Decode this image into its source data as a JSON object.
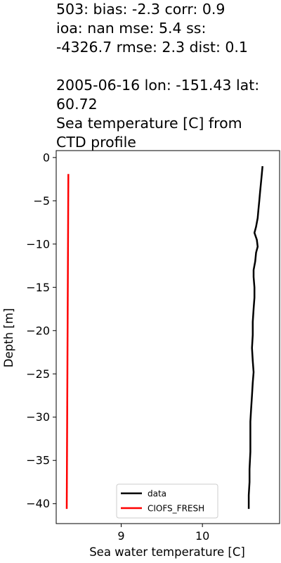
{
  "chart_data": {
    "type": "line",
    "title": "503: bias: -2.3  corr: 0.9\nioa: nan  mse: 5.4  ss:\n-4326.7  rmse: 2.3  dist: 0.1\n\n2005-06-16 lon: -151.43 lat:\n60.72\nSea temperature [C] from\nCTD profile",
    "xlabel": "Sea water temperature [C]",
    "ylabel": "Depth [m]",
    "xlim": [
      8.2,
      10.95
    ],
    "ylim": [
      -42.3,
      0.8
    ],
    "xticks": [
      9,
      10
    ],
    "yticks": [
      0,
      -5,
      -10,
      -15,
      -20,
      -25,
      -30,
      -35,
      -40
    ],
    "legend_position": "lower center",
    "series": [
      {
        "name": "data",
        "color": "#000000",
        "points": [
          [
            10.74,
            -1.0
          ],
          [
            10.73,
            -2.0
          ],
          [
            10.72,
            -3.0
          ],
          [
            10.71,
            -4.0
          ],
          [
            10.7,
            -5.0
          ],
          [
            10.69,
            -6.0
          ],
          [
            10.68,
            -7.0
          ],
          [
            10.66,
            -8.0
          ],
          [
            10.64,
            -8.7
          ],
          [
            10.67,
            -9.5
          ],
          [
            10.68,
            -10.3
          ],
          [
            10.66,
            -11.0
          ],
          [
            10.65,
            -12.0
          ],
          [
            10.63,
            -13.0
          ],
          [
            10.63,
            -13.8
          ],
          [
            10.64,
            -15.0
          ],
          [
            10.64,
            -16.2
          ],
          [
            10.63,
            -17.5
          ],
          [
            10.62,
            -19.0
          ],
          [
            10.62,
            -20.5
          ],
          [
            10.61,
            -22.0
          ],
          [
            10.62,
            -23.5
          ],
          [
            10.63,
            -24.8
          ],
          [
            10.62,
            -26.0
          ],
          [
            10.61,
            -27.5
          ],
          [
            10.6,
            -29.0
          ],
          [
            10.59,
            -30.5
          ],
          [
            10.59,
            -32.0
          ],
          [
            10.59,
            -34.0
          ],
          [
            10.58,
            -36.0
          ],
          [
            10.58,
            -37.5
          ],
          [
            10.57,
            -39.0
          ],
          [
            10.57,
            -40.6
          ]
        ]
      },
      {
        "name": "CIOFS_FRESH",
        "color": "#ff0000",
        "points": [
          [
            8.35,
            -1.9
          ],
          [
            8.33,
            -40.6
          ]
        ]
      }
    ]
  }
}
